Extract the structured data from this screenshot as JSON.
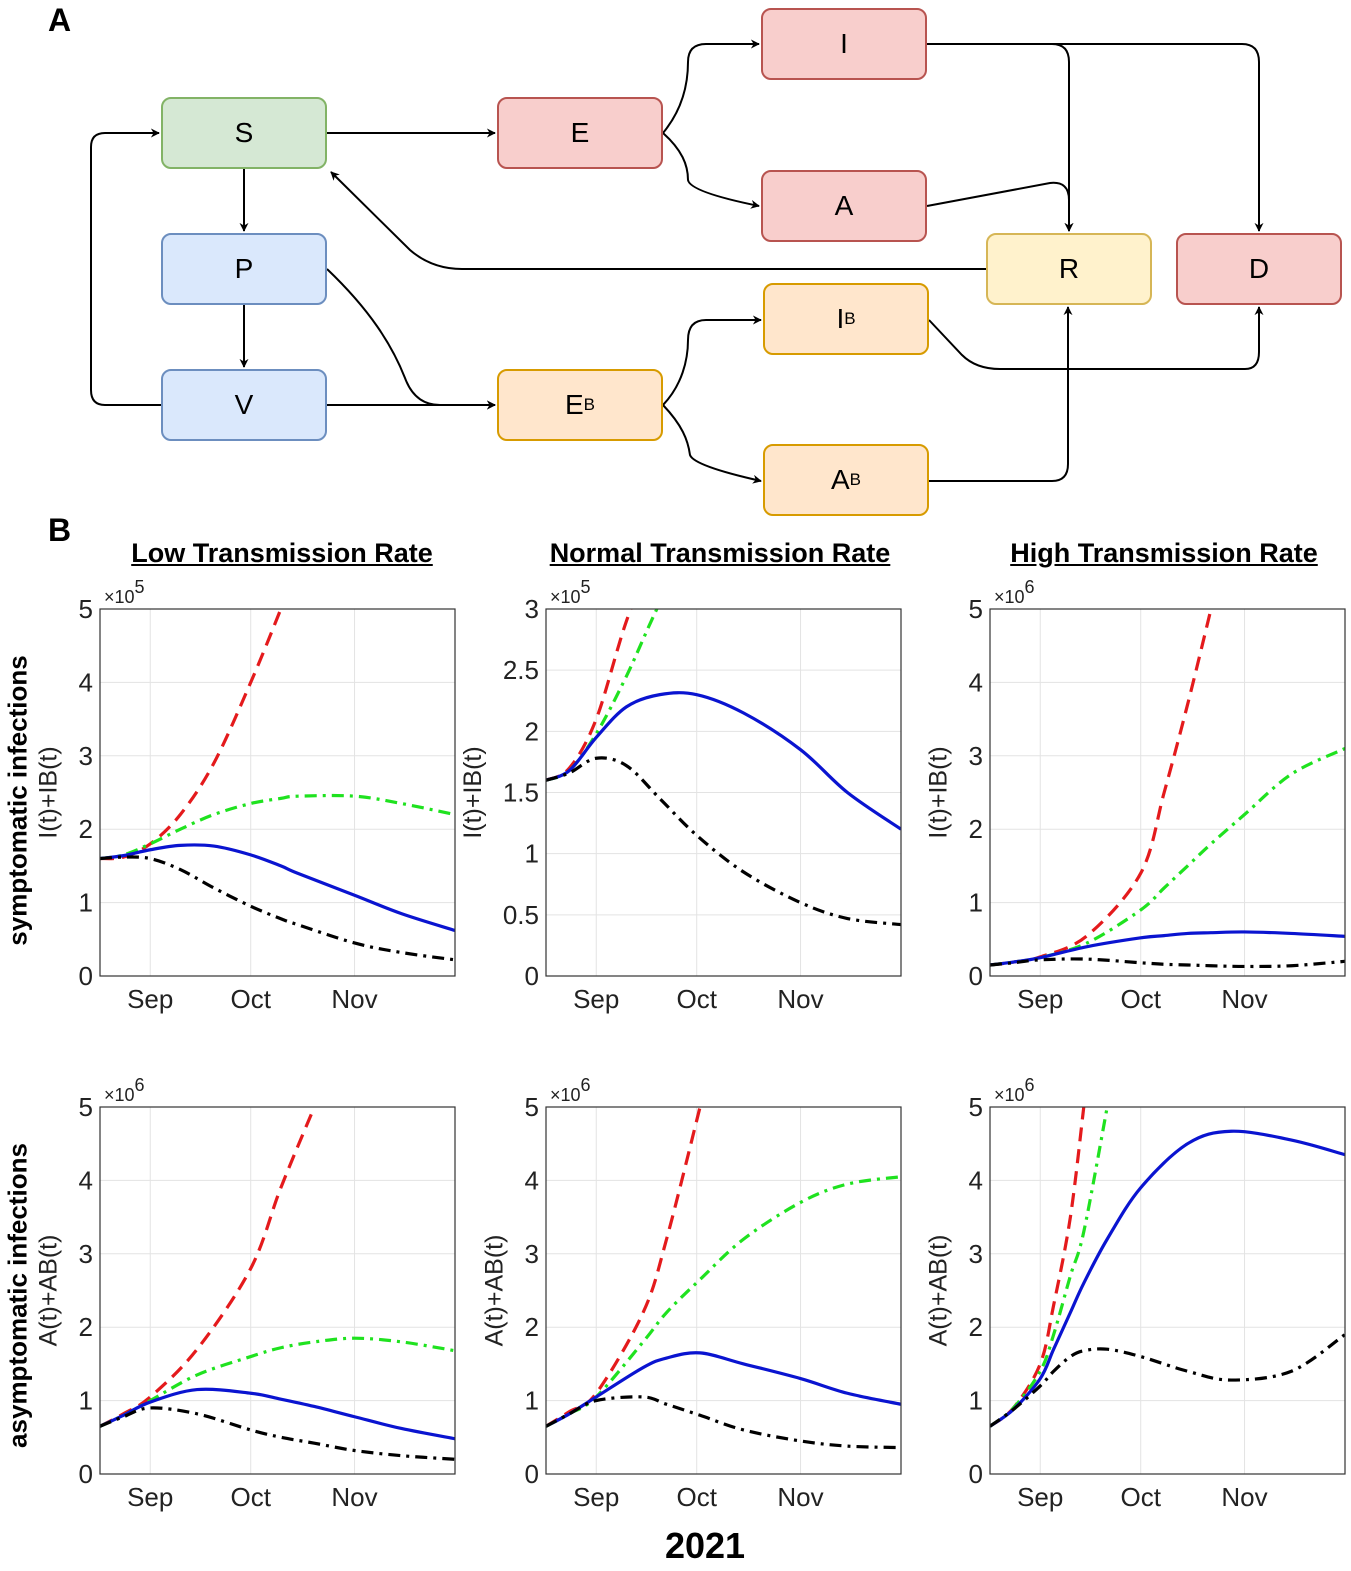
{
  "panel_a": {
    "letter": "A"
  },
  "panel_b": {
    "letter": "B"
  },
  "compartments": {
    "S": {
      "label": "S",
      "sub": "",
      "fill": "#d5e8d4",
      "stroke": "#82b366"
    },
    "E": {
      "label": "E",
      "sub": "",
      "fill": "#f8cecc",
      "stroke": "#b85450"
    },
    "I": {
      "label": "I",
      "sub": "",
      "fill": "#f8cecc",
      "stroke": "#b85450"
    },
    "A": {
      "label": "A",
      "sub": "",
      "fill": "#f8cecc",
      "stroke": "#b85450"
    },
    "P": {
      "label": "P",
      "sub": "",
      "fill": "#dae8fc",
      "stroke": "#6c8ebf"
    },
    "V": {
      "label": "V",
      "sub": "",
      "fill": "#dae8fc",
      "stroke": "#6c8ebf"
    },
    "R": {
      "label": "R",
      "sub": "",
      "fill": "#fff2cc",
      "stroke": "#d6b656"
    },
    "D": {
      "label": "D",
      "sub": "",
      "fill": "#f8cecc",
      "stroke": "#b85450"
    },
    "EB": {
      "label": "E",
      "sub": "B",
      "fill": "#ffe6cc",
      "stroke": "#d79b00"
    },
    "IB": {
      "label": "I",
      "sub": "B",
      "fill": "#ffe6cc",
      "stroke": "#d79b00"
    },
    "AB": {
      "label": "A",
      "sub": "B",
      "fill": "#ffe6cc",
      "stroke": "#d79b00"
    }
  },
  "flows": [
    [
      "S",
      "E"
    ],
    [
      "E",
      "I"
    ],
    [
      "E",
      "A"
    ],
    [
      "S",
      "P"
    ],
    [
      "P",
      "V"
    ],
    [
      "V",
      "S"
    ],
    [
      "P",
      "EB"
    ],
    [
      "V",
      "EB"
    ],
    [
      "R",
      "S"
    ],
    [
      "I",
      "R"
    ],
    [
      "I",
      "D"
    ],
    [
      "A",
      "R"
    ],
    [
      "IB",
      "D"
    ],
    [
      "AB",
      "R"
    ],
    [
      "EB",
      "IB"
    ],
    [
      "EB",
      "AB"
    ]
  ],
  "column_titles": [
    "Low Transmission Rate",
    "Normal Transmission Rate",
    "High Transmission Rate"
  ],
  "row_labels": [
    "symptomatic infections",
    "asymptomatic infections"
  ],
  "xaxis_year": "2021",
  "series_styles": [
    {
      "color": "#e41a1c",
      "style": "dashed"
    },
    {
      "color": "#1fe21f",
      "style": "dash-dot"
    },
    {
      "color": "#0a14d0",
      "style": "solid"
    },
    {
      "color": "#000000",
      "style": "dash-dot"
    }
  ],
  "chart_data": [
    {
      "type": "line",
      "row": 0,
      "col": 0,
      "ylabel": "I(t)+IB(t)",
      "exponent": "5",
      "ylim": [
        0,
        5
      ],
      "yticks": [
        "0",
        "1",
        "2",
        "3",
        "4",
        "5"
      ],
      "xlim": [
        "2021-08-17",
        "2021-12-01"
      ],
      "xticks": [
        [
          "2021-09-01",
          "Sep"
        ],
        [
          "2021-10-01",
          "Oct"
        ],
        [
          "2021-11-01",
          "Nov"
        ]
      ],
      "grid": true,
      "x": [
        "2021-08-17",
        "2021-08-24",
        "2021-09-01",
        "2021-09-10",
        "2021-09-20",
        "2021-10-01",
        "2021-10-10",
        "2021-10-15",
        "2021-11-01",
        "2021-11-15",
        "2021-12-01"
      ],
      "series": [
        {
          "values": [
            1.6,
            1.62,
            1.8,
            2.2,
            2.9,
            4.0,
            5.0,
            5.6,
            null,
            null,
            null
          ]
        },
        {
          "values": [
            1.6,
            1.65,
            1.8,
            2.0,
            2.2,
            2.35,
            2.42,
            2.45,
            2.45,
            2.35,
            2.2
          ]
        },
        {
          "values": [
            1.6,
            1.64,
            1.72,
            1.78,
            1.77,
            1.65,
            1.5,
            1.4,
            1.1,
            0.85,
            0.62
          ]
        },
        {
          "values": [
            1.6,
            1.62,
            1.6,
            1.45,
            1.2,
            0.95,
            0.78,
            0.7,
            0.45,
            0.32,
            0.22
          ]
        }
      ]
    },
    {
      "type": "line",
      "row": 0,
      "col": 1,
      "ylabel": "I(t)+IB(t)",
      "exponent": "5",
      "ylim": [
        0,
        3
      ],
      "yticks": [
        "0",
        "0.5",
        "1",
        "1.5",
        "2",
        "2.5",
        "3"
      ],
      "xlim": [
        "2021-08-17",
        "2021-12-01"
      ],
      "xticks": [
        [
          "2021-09-01",
          "Sep"
        ],
        [
          "2021-10-01",
          "Oct"
        ],
        [
          "2021-11-01",
          "Nov"
        ]
      ],
      "grid": true,
      "x": [
        "2021-08-17",
        "2021-08-24",
        "2021-09-01",
        "2021-09-10",
        "2021-09-20",
        "2021-10-01",
        "2021-10-15",
        "2021-11-01",
        "2021-11-15",
        "2021-12-01"
      ],
      "series": [
        {
          "values": [
            1.6,
            1.7,
            2.1,
            2.9,
            3.6,
            null,
            null,
            null,
            null,
            null
          ]
        },
        {
          "values": [
            1.6,
            1.68,
            1.98,
            2.45,
            3.05,
            3.6,
            null,
            null,
            null,
            null
          ]
        },
        {
          "values": [
            1.6,
            1.68,
            1.95,
            2.2,
            2.3,
            2.3,
            2.15,
            1.85,
            1.5,
            1.2
          ]
        },
        {
          "values": [
            1.6,
            1.66,
            1.78,
            1.72,
            1.45,
            1.15,
            0.85,
            0.6,
            0.47,
            0.42
          ]
        }
      ]
    },
    {
      "type": "line",
      "row": 0,
      "col": 2,
      "ylabel": "I(t)+IB(t)",
      "exponent": "6",
      "ylim": [
        0,
        5
      ],
      "yticks": [
        "0",
        "1",
        "2",
        "3",
        "4",
        "5"
      ],
      "xlim": [
        "2021-08-17",
        "2021-12-01"
      ],
      "xticks": [
        [
          "2021-09-01",
          "Sep"
        ],
        [
          "2021-10-01",
          "Oct"
        ],
        [
          "2021-11-01",
          "Nov"
        ]
      ],
      "grid": true,
      "x": [
        "2021-08-17",
        "2021-08-24",
        "2021-09-01",
        "2021-09-15",
        "2021-10-01",
        "2021-10-08",
        "2021-10-15",
        "2021-10-22",
        "2021-11-01",
        "2021-11-15",
        "2021-12-01"
      ],
      "series": [
        {
          "values": [
            0.15,
            0.19,
            0.26,
            0.55,
            1.4,
            2.5,
            3.7,
            5.0,
            null,
            null,
            null
          ]
        },
        {
          "values": [
            0.15,
            0.19,
            0.25,
            0.45,
            0.9,
            1.2,
            1.5,
            1.8,
            2.2,
            2.75,
            3.1
          ]
        },
        {
          "values": [
            0.15,
            0.19,
            0.25,
            0.4,
            0.52,
            0.55,
            0.58,
            0.59,
            0.6,
            0.58,
            0.54
          ]
        },
        {
          "values": [
            0.15,
            0.18,
            0.22,
            0.23,
            0.18,
            0.16,
            0.15,
            0.14,
            0.13,
            0.14,
            0.2
          ]
        }
      ]
    },
    {
      "type": "line",
      "row": 1,
      "col": 0,
      "ylabel": "A(t)+AB(t)",
      "exponent": "6",
      "ylim": [
        0,
        5
      ],
      "yticks": [
        "0",
        "1",
        "2",
        "3",
        "4",
        "5"
      ],
      "xlim": [
        "2021-08-17",
        "2021-12-01"
      ],
      "xticks": [
        [
          "2021-09-01",
          "Sep"
        ],
        [
          "2021-10-01",
          "Oct"
        ],
        [
          "2021-11-01",
          "Nov"
        ]
      ],
      "grid": true,
      "x": [
        "2021-08-17",
        "2021-08-24",
        "2021-09-01",
        "2021-09-15",
        "2021-10-01",
        "2021-10-10",
        "2021-10-20",
        "2021-11-01",
        "2021-11-15",
        "2021-12-01"
      ],
      "series": [
        {
          "values": [
            0.65,
            0.82,
            1.05,
            1.7,
            2.8,
            3.9,
            5.0,
            null,
            null,
            null
          ]
        },
        {
          "values": [
            0.65,
            0.8,
            1.0,
            1.35,
            1.6,
            1.72,
            1.8,
            1.85,
            1.8,
            1.68
          ]
        },
        {
          "values": [
            0.65,
            0.8,
            0.98,
            1.15,
            1.1,
            1.02,
            0.92,
            0.78,
            0.62,
            0.48
          ]
        },
        {
          "values": [
            0.65,
            0.78,
            0.9,
            0.82,
            0.6,
            0.5,
            0.42,
            0.32,
            0.25,
            0.2
          ]
        }
      ]
    },
    {
      "type": "line",
      "row": 1,
      "col": 1,
      "ylabel": "A(t)+AB(t)",
      "exponent": "6",
      "ylim": [
        0,
        5
      ],
      "yticks": [
        "0",
        "1",
        "2",
        "3",
        "4",
        "5"
      ],
      "xlim": [
        "2021-08-17",
        "2021-12-01"
      ],
      "xticks": [
        [
          "2021-09-01",
          "Sep"
        ],
        [
          "2021-10-01",
          "Oct"
        ],
        [
          "2021-11-01",
          "Nov"
        ]
      ],
      "grid": true,
      "x": [
        "2021-08-17",
        "2021-08-24",
        "2021-09-01",
        "2021-09-15",
        "2021-09-22",
        "2021-10-02",
        "2021-10-15",
        "2021-11-01",
        "2021-11-15",
        "2021-12-01"
      ],
      "series": [
        {
          "values": [
            0.65,
            0.85,
            1.1,
            2.2,
            3.2,
            5.0,
            null,
            null,
            null,
            null
          ]
        },
        {
          "values": [
            0.65,
            0.82,
            1.05,
            1.8,
            2.2,
            2.65,
            3.2,
            3.7,
            3.95,
            4.05
          ]
        },
        {
          "values": [
            0.65,
            0.82,
            1.05,
            1.45,
            1.58,
            1.65,
            1.5,
            1.3,
            1.1,
            0.95
          ]
        },
        {
          "values": [
            0.65,
            0.82,
            1.0,
            1.05,
            0.95,
            0.8,
            0.6,
            0.45,
            0.38,
            0.36
          ]
        }
      ]
    },
    {
      "type": "line",
      "row": 1,
      "col": 2,
      "ylabel": "A(t)+AB(t)",
      "exponent": "6",
      "ylim": [
        0,
        5
      ],
      "yticks": [
        "0",
        "1",
        "2",
        "3",
        "4",
        "5"
      ],
      "xlim": [
        "2021-08-17",
        "2021-12-01"
      ],
      "xticks": [
        [
          "2021-09-01",
          "Sep"
        ],
        [
          "2021-10-01",
          "Oct"
        ],
        [
          "2021-11-01",
          "Nov"
        ]
      ],
      "grid": true,
      "x": [
        "2021-08-17",
        "2021-08-24",
        "2021-09-01",
        "2021-09-05",
        "2021-09-10",
        "2021-09-14",
        "2021-09-21",
        "2021-10-01",
        "2021-10-15",
        "2021-10-28",
        "2021-11-15",
        "2021-12-01"
      ],
      "series": [
        {
          "values": [
            0.65,
            0.9,
            1.5,
            2.3,
            3.5,
            5.0,
            null,
            null,
            null,
            null,
            null,
            null
          ]
        },
        {
          "values": [
            0.65,
            0.9,
            1.4,
            1.9,
            2.7,
            3.3,
            5.0,
            null,
            null,
            null,
            null,
            null
          ]
        },
        {
          "values": [
            0.65,
            0.88,
            1.3,
            1.7,
            2.2,
            2.6,
            3.2,
            3.9,
            4.5,
            4.67,
            4.55,
            4.35
          ]
        },
        {
          "values": [
            0.65,
            0.88,
            1.2,
            1.4,
            1.6,
            1.68,
            1.7,
            1.6,
            1.4,
            1.28,
            1.4,
            1.9
          ]
        }
      ]
    }
  ]
}
